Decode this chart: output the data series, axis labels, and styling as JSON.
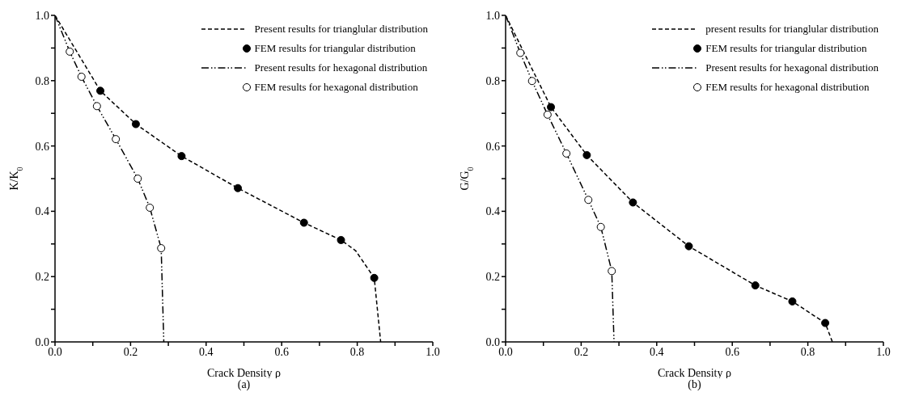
{
  "chart_data": [
    {
      "type": "line",
      "xlabel": "Crack Density ρ",
      "ylabel": "K/K$_{0}$",
      "annotations": [
        "(a)"
      ],
      "legend": "top right",
      "grid": false,
      "xlim": [
        0,
        1
      ],
      "ylim": [
        0,
        1
      ],
      "xticks": [
        {
          "value": 0,
          "label": "0.0"
        },
        {
          "value": 0.1,
          "label": null
        },
        {
          "value": 0.2,
          "label": "0.2"
        },
        {
          "value": 0.3,
          "label": null
        },
        {
          "value": 0.4,
          "label": "0.4"
        },
        {
          "value": 0.5,
          "label": null
        },
        {
          "value": 0.6,
          "label": "0.6"
        },
        {
          "value": 0.7,
          "label": null
        },
        {
          "value": 0.8,
          "label": "0.8"
        },
        {
          "value": 0.9,
          "label": null
        },
        {
          "value": 1,
          "label": "1.0"
        }
      ],
      "yticks": [
        {
          "value": 0,
          "label": "0.0"
        },
        {
          "value": 0.1,
          "label": null
        },
        {
          "value": 0.2,
          "label": "0.2"
        },
        {
          "value": 0.3,
          "label": null
        },
        {
          "value": 0.4,
          "label": "0.4"
        },
        {
          "value": 0.5,
          "label": null
        },
        {
          "value": 0.6,
          "label": "0.6"
        },
        {
          "value": 0.7,
          "label": null
        },
        {
          "value": 0.8,
          "label": "0.8"
        },
        {
          "value": 0.9,
          "label": null
        },
        {
          "value": 1,
          "label": "1.0"
        }
      ],
      "series": [
        {
          "name": "Present results for trianglular distribution",
          "line_style": "dashed",
          "color": "#000000",
          "x": [
            0,
            0.12,
            0.214,
            0.335,
            0.484,
            0.659,
            0.757,
            0.796,
            0.845,
            0.862
          ],
          "values": [
            1,
            0.769,
            0.667,
            0.569,
            0.471,
            0.365,
            0.312,
            0.279,
            0.196,
            0
          ]
        },
        {
          "name": "FEM results for triangular distribution",
          "type": "scatter",
          "marker": "circle",
          "color": "#000000",
          "x": [
            0.12,
            0.214,
            0.335,
            0.484,
            0.659,
            0.757,
            0.845
          ],
          "values": [
            0.769,
            0.667,
            0.569,
            0.471,
            0.365,
            0.312,
            0.196
          ]
        },
        {
          "name": "Present results for hexagonal distribution",
          "line_style": "dotted",
          "color": "#000000",
          "x": [
            0,
            0.039,
            0.07,
            0.111,
            0.161,
            0.219,
            0.251,
            0.281,
            0.288
          ],
          "values": [
            1,
            0.889,
            0.812,
            0.722,
            0.621,
            0.5,
            0.411,
            0.287,
            0
          ]
        },
        {
          "name": "FEM results for hexagonal distribution",
          "type": "scatter",
          "marker": "circle",
          "color": "#ffffff",
          "x": [
            0.039,
            0.07,
            0.111,
            0.161,
            0.219,
            0.251,
            0.281
          ],
          "values": [
            0.889,
            0.812,
            0.722,
            0.621,
            0.5,
            0.411,
            0.287
          ]
        }
      ]
    },
    {
      "type": "line",
      "xlabel": "Crack Density ρ",
      "ylabel": "G/G$_{0}$",
      "annotations": [
        "(b)"
      ],
      "legend": "top right",
      "grid": false,
      "xlim": [
        0,
        1
      ],
      "ylim": [
        0,
        1
      ],
      "xticks": [
        {
          "value": 0,
          "label": "0.0"
        },
        {
          "value": 0.1,
          "label": null
        },
        {
          "value": 0.2,
          "label": "0.2"
        },
        {
          "value": 0.3,
          "label": null
        },
        {
          "value": 0.4,
          "label": "0.4"
        },
        {
          "value": 0.5,
          "label": null
        },
        {
          "value": 0.6,
          "label": "0.6"
        },
        {
          "value": 0.7,
          "label": null
        },
        {
          "value": 0.8,
          "label": "0.8"
        },
        {
          "value": 0.9,
          "label": null
        },
        {
          "value": 1,
          "label": "1.0"
        }
      ],
      "yticks": [
        {
          "value": 0,
          "label": "0.0"
        },
        {
          "value": 0.1,
          "label": null
        },
        {
          "value": 0.2,
          "label": "0.2"
        },
        {
          "value": 0.3,
          "label": null
        },
        {
          "value": 0.4,
          "label": "0.4"
        },
        {
          "value": 0.5,
          "label": null
        },
        {
          "value": 0.6,
          "label": "0.6"
        },
        {
          "value": 0.7,
          "label": null
        },
        {
          "value": 0.8,
          "label": "0.8"
        },
        {
          "value": 0.9,
          "label": null
        },
        {
          "value": 1,
          "label": "1.0"
        }
      ],
      "series": [
        {
          "name": "present results for trianglular distribution",
          "line_style": "dashed",
          "color": "#000000",
          "x": [
            0,
            0.12,
            0.215,
            0.337,
            0.485,
            0.661,
            0.759,
            0.846,
            0.865
          ],
          "values": [
            1,
            0.719,
            0.572,
            0.427,
            0.293,
            0.173,
            0.124,
            0.058,
            0
          ]
        },
        {
          "name": "FEM results for triangular distribution",
          "type": "scatter",
          "marker": "circle",
          "color": "#000000",
          "x": [
            0.12,
            0.215,
            0.337,
            0.485,
            0.661,
            0.759,
            0.846
          ],
          "values": [
            0.719,
            0.572,
            0.427,
            0.293,
            0.173,
            0.124,
            0.058
          ]
        },
        {
          "name": "Present results for hexagonal distribution",
          "line_style": "dotted",
          "color": "#000000",
          "x": [
            0,
            0.039,
            0.07,
            0.111,
            0.161,
            0.219,
            0.252,
            0.281,
            0.287
          ],
          "values": [
            1,
            0.885,
            0.799,
            0.696,
            0.577,
            0.435,
            0.352,
            0.217,
            0
          ]
        },
        {
          "name": "FEM results for hexagonal distribution",
          "type": "scatter",
          "marker": "circle",
          "color": "#ffffff",
          "x": [
            0.039,
            0.07,
            0.111,
            0.161,
            0.219,
            0.252,
            0.281
          ],
          "values": [
            0.885,
            0.799,
            0.696,
            0.577,
            0.435,
            0.352,
            0.217
          ]
        }
      ]
    }
  ]
}
